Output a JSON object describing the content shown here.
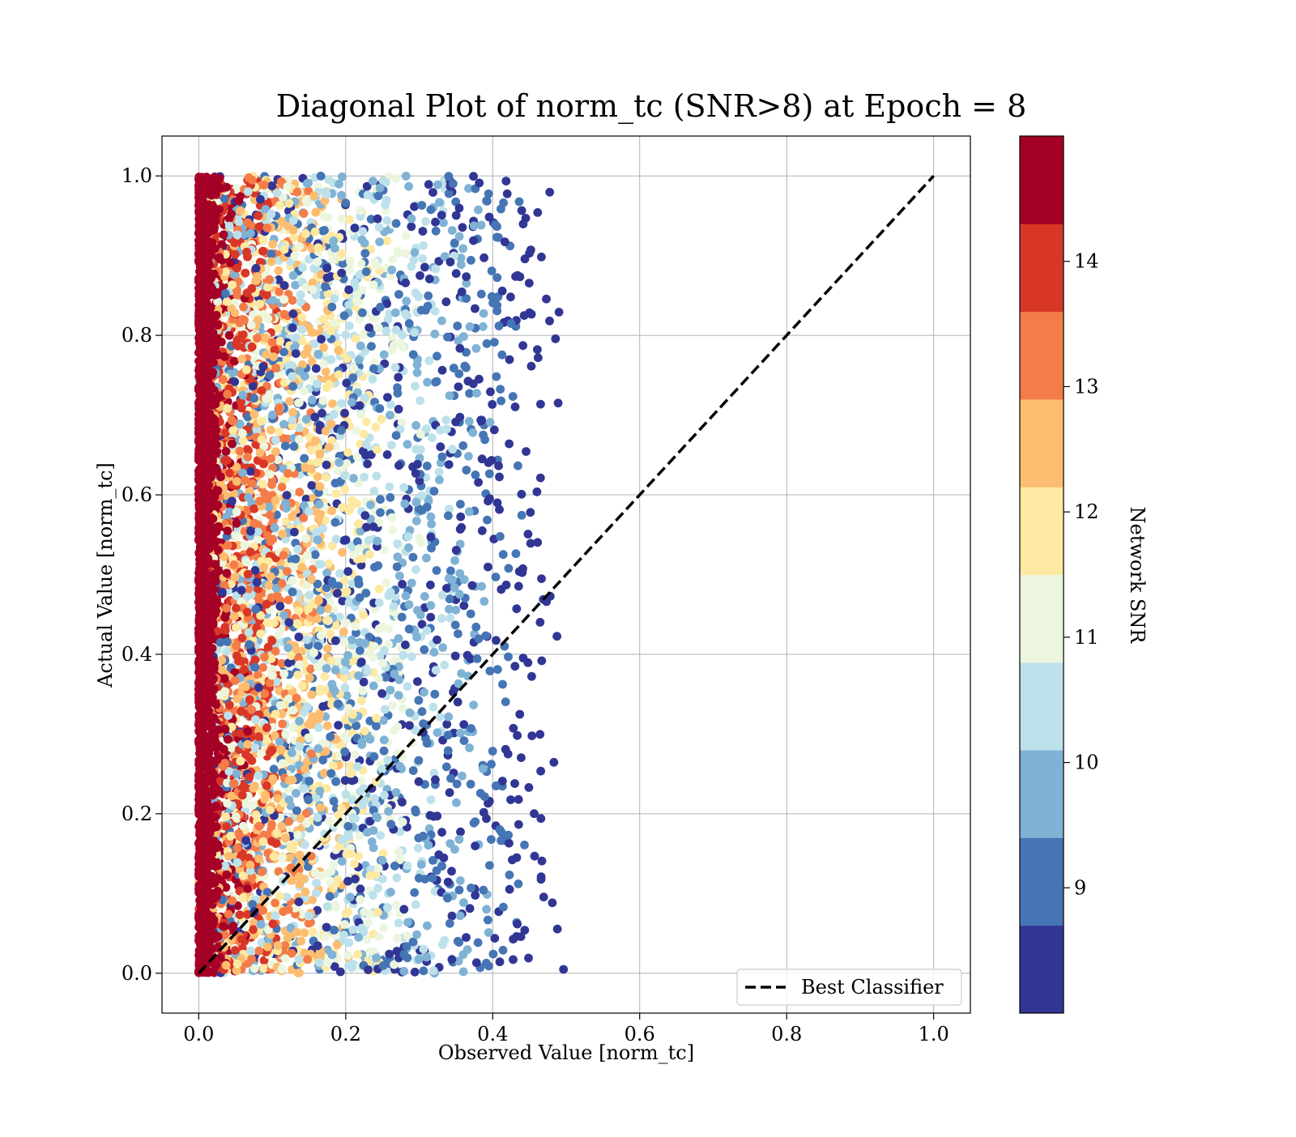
{
  "chart_data": {
    "type": "scatter",
    "title": "Diagonal Plot of norm_tc (SNR>8) at Epoch = 8",
    "xlabel": "Observed Value [norm_tc]",
    "ylabel": "Actual Value [norm_tc]",
    "xlim": [
      -0.05,
      1.05
    ],
    "ylim": [
      -0.05,
      1.05
    ],
    "x_ticks": [
      0.0,
      0.2,
      0.4,
      0.6,
      0.8,
      1.0
    ],
    "y_ticks": [
      0.0,
      0.2,
      0.4,
      0.6,
      0.8,
      1.0
    ],
    "x_tick_labels": [
      "0.0",
      "0.2",
      "0.4",
      "0.6",
      "0.8",
      "1.0"
    ],
    "y_tick_labels": [
      "0.0",
      "0.2",
      "0.4",
      "0.6",
      "0.8",
      "1.0"
    ],
    "grid": true,
    "legend": {
      "location": "lower-right",
      "entries": [
        {
          "label": "Best Classifier",
          "style": "dashed",
          "color": "#000000"
        }
      ]
    },
    "reference_line": {
      "name": "Best Classifier",
      "x": [
        0.0,
        1.0
      ],
      "y": [
        0.0,
        1.0
      ]
    },
    "scatter_summary": {
      "x_range": [
        0.0,
        0.52
      ],
      "y_range": [
        0.0,
        1.0
      ],
      "color_by": "Network SNR",
      "trend": "high-SNR points concentrated near x = 0; low-SNR points extend to x ≈ 0.5"
    },
    "colorbar": {
      "label": "Network SNR",
      "range": [
        8.0,
        15.0
      ],
      "ticks": [
        9,
        10,
        11,
        12,
        13,
        14
      ],
      "tick_labels": [
        "9",
        "10",
        "11",
        "12",
        "13",
        "14"
      ],
      "colors": [
        "#313695",
        "#4575b4",
        "#7fb2d5",
        "#bde1eb",
        "#ecf6df",
        "#fde9a1",
        "#fcbd70",
        "#f47c49",
        "#d83728",
        "#a50026"
      ]
    }
  }
}
